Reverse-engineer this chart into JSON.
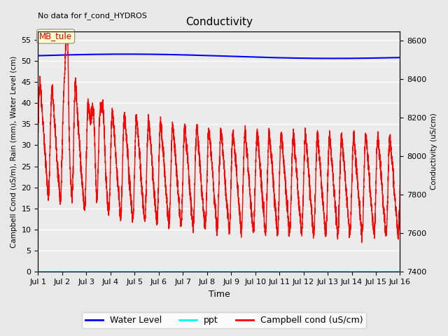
{
  "title": "Conductivity",
  "top_left_text": "No data for f_cond_HYDROS",
  "xlabel": "Time",
  "ylabel_left": "Campbell Cond (uS/m), Rain (mm), Water Level (cm)",
  "ylabel_right": "Conductivity (uS/cm)",
  "xlim": [
    0,
    15
  ],
  "ylim_left": [
    0,
    57
  ],
  "ylim_right": [
    7400,
    8650
  ],
  "xtick_labels": [
    "Jul 1",
    "Jul 2",
    "Jul 3",
    "Jul 4",
    "Jul 5",
    "Jul 6",
    "Jul 7",
    "Jul 8",
    "Jul 9",
    "Jul 10",
    "Jul 11",
    "Jul 12",
    "Jul 13",
    "Jul 14",
    "Jul 15",
    "Jul 16"
  ],
  "xtick_positions": [
    0,
    1,
    2,
    3,
    4,
    5,
    6,
    7,
    8,
    9,
    10,
    11,
    12,
    13,
    14,
    15
  ],
  "ytick_left": [
    0,
    5,
    10,
    15,
    20,
    25,
    30,
    35,
    40,
    45,
    50,
    55
  ],
  "ytick_right": [
    7400,
    7600,
    7800,
    8000,
    8200,
    8400,
    8600
  ],
  "bg_color": "#e8e8e8",
  "plot_bg_color": "#ebebeb",
  "water_level_color": "blue",
  "ppt_color": "cyan",
  "campbell_color": "red",
  "grid_color": "white",
  "grid_lw": 1.0,
  "mbtule_box_color": "#ffffcc",
  "mbtule_text_color": "#cc0000",
  "figsize": [
    6.4,
    4.8
  ],
  "dpi": 100
}
